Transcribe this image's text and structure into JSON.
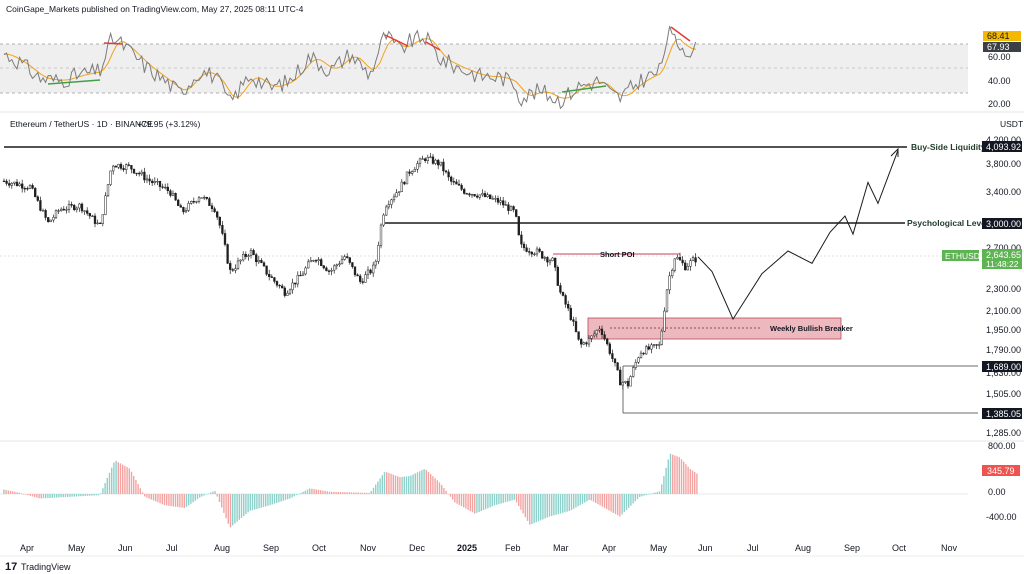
{
  "header": {
    "published": "CoinGape_Markets published on TradingView.com, May 27, 2025 08:11 UTC-4",
    "brand": "TradingView"
  },
  "symbol": {
    "title": "Ethereum / TetherUS · 1D · BINANCE",
    "change": "+79.95 (+3.12%)",
    "quote_currency": "USDT"
  },
  "colors": {
    "up": "#26a69a",
    "down": "#ef5350",
    "candle": "#1e1e1e",
    "rsi_line": "#7b7b7b",
    "rsi_ma": "#f2a21a",
    "zone": "#e8a0aa",
    "zone_border": "#b8495a",
    "badge_dark": "#131722",
    "badge_green": "#5eb352",
    "badge_rsi_yellow": "#f5b800"
  },
  "chart_data": [
    {
      "type": "line",
      "name": "rsi_panel",
      "y_ticks": [
        "60.00",
        "40.00",
        "20.00"
      ],
      "ylim": [
        15,
        95
      ],
      "band": [
        30,
        70
      ],
      "mid": 50,
      "badges": [
        {
          "label": "68.41",
          "value": 68.41
        },
        {
          "label": "67.93",
          "value": 67.93
        }
      ]
    },
    {
      "type": "candlestick",
      "name": "price_panel",
      "x_months": [
        "Apr",
        "May",
        "Jun",
        "Jul",
        "Aug",
        "Sep",
        "Oct",
        "Nov",
        "Dec",
        "2025",
        "Feb",
        "Mar",
        "Apr",
        "May",
        "Jun",
        "Jul",
        "Aug",
        "Sep",
        "Oct",
        "Nov"
      ],
      "y_ticks": [
        "4,200.00",
        "3,800.00",
        "3,400.00",
        "3,000.00",
        "2,700.00",
        "2,300.00",
        "2,100.00",
        "1,950.00",
        "1,790.00",
        "1,630.00",
        "1,505.00",
        "1,385.00",
        "1,285.00"
      ],
      "last_price": "2,643.65",
      "countdown": "11:48:22",
      "ticker": "ETHUSDT",
      "levels": [
        {
          "label": "Buy-Side Liquidity",
          "value": 4093.92,
          "badge": "4,093.92"
        },
        {
          "label": "Psychological Level",
          "value": 3000.0,
          "badge": "3,000.00"
        },
        {
          "label": "",
          "value": 1689.0,
          "badge": "1,689.00"
        },
        {
          "label": "",
          "value": 1385.05,
          "badge": "1,385.05"
        }
      ],
      "short_poi": {
        "label": "Short POI",
        "value": 2700
      },
      "weekly_bullish_breaker": {
        "label": "Weekly Bullish Breaker",
        "from": 1880,
        "to": 2060
      },
      "projection_path": [
        2643,
        2500,
        2060,
        2480,
        2700,
        2580,
        2900,
        3100,
        2880,
        3580,
        3280,
        4080
      ]
    },
    {
      "type": "histogram",
      "name": "momentum_panel",
      "y_ticks": [
        "800.00",
        "0.00",
        "-400.00"
      ],
      "ylim": [
        -600,
        900
      ],
      "last_value": "345.79"
    }
  ]
}
